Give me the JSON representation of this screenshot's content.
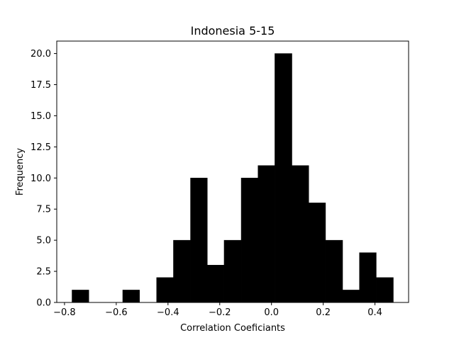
{
  "chart_data": {
    "type": "bar",
    "title": "Indonesia 5-15",
    "xlabel": "Correlation Coeficiants",
    "ylabel": "Frequency",
    "xlim": [
      -0.83,
      0.53
    ],
    "ylim": [
      0,
      21
    ],
    "x_ticks": [
      -0.8,
      -0.6,
      -0.4,
      -0.2,
      0.0,
      0.2,
      0.4
    ],
    "x_tick_labels": [
      "−0.8",
      "−0.6",
      "−0.4",
      "−0.2",
      "0.0",
      "0.2",
      "0.4"
    ],
    "y_ticks": [
      0,
      2.5,
      5,
      7.5,
      10,
      12.5,
      15,
      17.5,
      20
    ],
    "y_tick_labels": [
      "0.0",
      "2.5",
      "5.0",
      "7.5",
      "10.0",
      "12.5",
      "15.0",
      "17.5",
      "20.0"
    ],
    "bin_edges": [
      -0.771,
      -0.706,
      -0.64,
      -0.575,
      -0.51,
      -0.444,
      -0.379,
      -0.313,
      -0.248,
      -0.183,
      -0.117,
      -0.052,
      0.013,
      0.079,
      0.144,
      0.209,
      0.275,
      0.34,
      0.405,
      0.471
    ],
    "values": [
      1,
      0,
      0,
      1,
      0,
      2,
      5,
      10,
      3,
      5,
      10,
      11,
      20,
      11,
      8,
      5,
      1,
      4,
      2
    ],
    "bar_color": "#000000",
    "grid": false
  }
}
